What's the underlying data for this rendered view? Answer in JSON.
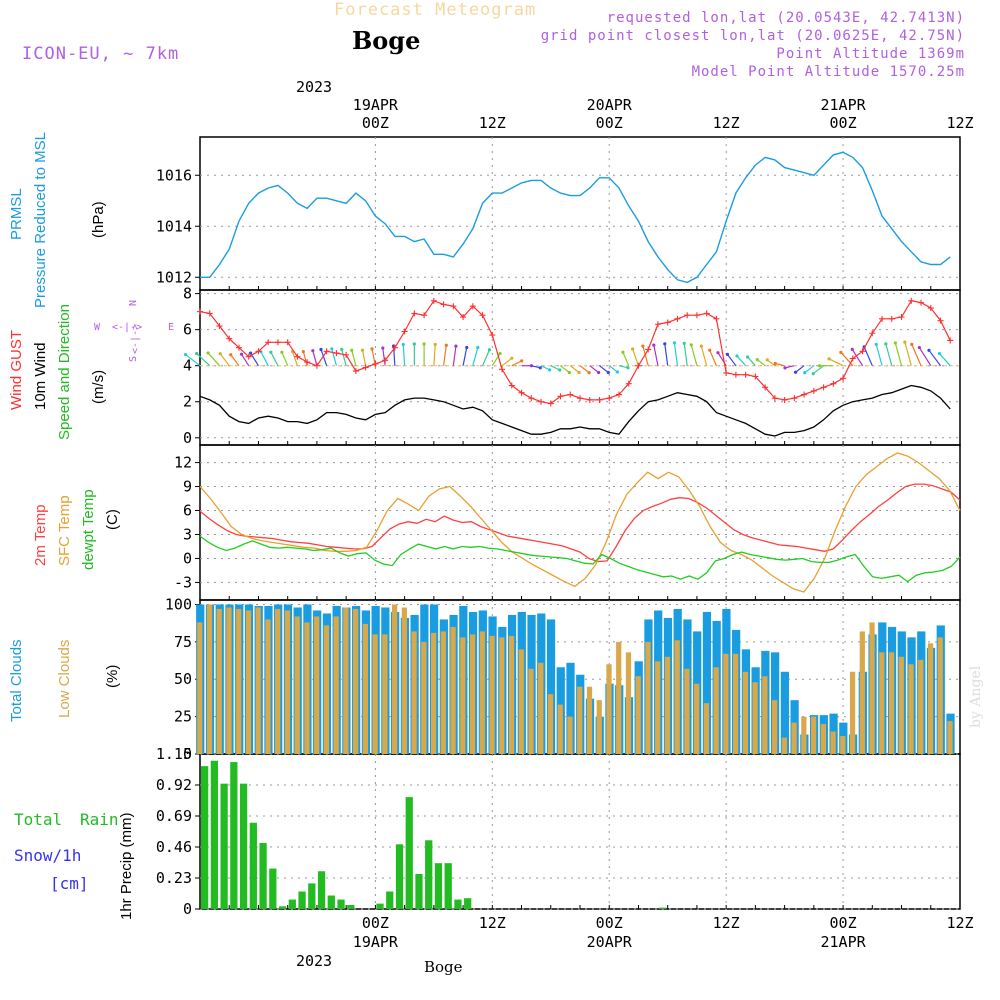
{
  "header": {
    "product": "Forecast Meteogram",
    "location": "Boge",
    "model": "ICON-EU, ~ 7km",
    "requested": "requested lon,lat (20.0543E, 42.7413N)",
    "gridpoint": "grid point closest lon,lat (20.0625E, 42.75N)",
    "point_alt": "Point Altitude 1369m",
    "model_alt": "Model Point Altitude 1570.25m"
  },
  "footer": {
    "location": "Boge",
    "watermark": "by Angel"
  },
  "time_axis": {
    "top": {
      "year": "2023",
      "labels": [
        {
          "date": "19APR",
          "hour": "00Z"
        },
        {
          "date": "",
          "hour": "12Z"
        },
        {
          "date": "20APR",
          "hour": "00Z"
        },
        {
          "date": "",
          "hour": "12Z"
        },
        {
          "date": "21APR",
          "hour": "00Z"
        },
        {
          "date": "",
          "hour": "12Z"
        }
      ]
    },
    "bottom": {
      "year": "2023",
      "labels": [
        {
          "hour": "00Z",
          "date": "19APR"
        },
        {
          "hour": "12Z",
          "date": ""
        },
        {
          "hour": "00Z",
          "date": "20APR"
        },
        {
          "hour": "12Z",
          "date": ""
        },
        {
          "hour": "00Z",
          "date": "21APR"
        },
        {
          "hour": "12Z",
          "date": ""
        }
      ]
    }
  },
  "panels": {
    "pressure": {
      "label1": "PRMSL",
      "label2": "Pressure Reduced to MSL",
      "unit": "(hPa)"
    },
    "wind": {
      "label1": "Wind GUST",
      "label2": "10m Wind",
      "label3": "Speed and Direction",
      "unit": "(m/s)",
      "compass": {
        "n": "N",
        "s": "S",
        "w": "W",
        "e": "E",
        "arrow": "<-|->"
      }
    },
    "temp": {
      "label1": "2m Temp",
      "label2": "SFC Temp",
      "label3": "dewpt Temp",
      "unit": "(C)"
    },
    "clouds": {
      "label1": "Total Clouds",
      "label2": "Low Clouds",
      "unit": "(%)"
    },
    "precip": {
      "label": "1hr Precip (mm)",
      "legend": {
        "total": "Total",
        "rain": "Rain",
        "snow": "Snow/1h",
        "snow_unit": "[cm]"
      }
    }
  },
  "colors": {
    "pressure": "#1a9de0",
    "gust": "#ff3030",
    "wind": "#000000",
    "temp2m": "#ff4040",
    "sfc": "#e8a030",
    "dew": "#22cc22",
    "total_clouds": "#1a9de0",
    "low_clouds": "#d9a84a",
    "precip": "#22bb22",
    "purple": "#b060e0"
  },
  "chart_data": [
    {
      "type": "line",
      "title": "PRMSL Pressure Reduced to MSL",
      "ylabel": "(hPa)",
      "x_hours_start": -18,
      "x_step_hours": 1,
      "ylim": [
        1011.5,
        1017.5
      ],
      "yticks": [
        1012,
        1014,
        1016
      ],
      "series": [
        {
          "name": "PRMSL",
          "values": [
            1012,
            1012,
            1012.5,
            1013.1,
            1014.2,
            1014.9,
            1015.3,
            1015.5,
            1015.6,
            1015.3,
            1014.9,
            1014.7,
            1015.1,
            1015.1,
            1015.0,
            1014.9,
            1015.3,
            1015.0,
            1014.4,
            1014.1,
            1013.6,
            1013.6,
            1013.4,
            1013.5,
            1012.9,
            1012.9,
            1012.8,
            1013.3,
            1013.9,
            1014.9,
            1015.3,
            1015.3,
            1015.5,
            1015.7,
            1015.8,
            1015.8,
            1015.5,
            1015.3,
            1015.2,
            1015.2,
            1015.5,
            1015.9,
            1015.9,
            1015.5,
            1014.8,
            1014.2,
            1013.4,
            1012.8,
            1012.3,
            1011.9,
            1011.8,
            1012.0,
            1012.5,
            1013.0,
            1014.2,
            1015.3,
            1015.9,
            1016.4,
            1016.7,
            1016.6,
            1016.3,
            1016.2,
            1016.1,
            1016.0,
            1016.4,
            1016.8,
            1016.9,
            1016.7,
            1016.3,
            1015.4,
            1014.4,
            1013.9,
            1013.4,
            1013.0,
            1012.6,
            1012.5,
            1012.5,
            1012.8
          ]
        }
      ]
    },
    {
      "type": "line",
      "title": "Wind GUST / 10m Wind Speed and Direction",
      "ylabel": "(m/s)",
      "x_hours_start": -18,
      "x_step_hours": 1,
      "ylim": [
        -0.4,
        8.2
      ],
      "yticks": [
        0,
        2,
        4,
        6,
        8
      ],
      "series": [
        {
          "name": "Wind GUST",
          "values": [
            7.0,
            6.9,
            6.2,
            5.5,
            5.0,
            4.5,
            4.8,
            5.3,
            5.3,
            5.3,
            4.5,
            4.2,
            4.0,
            4.8,
            4.7,
            4.6,
            3.7,
            3.9,
            4.1,
            4.3,
            5.0,
            5.9,
            6.9,
            6.8,
            7.6,
            7.4,
            7.3,
            6.7,
            7.3,
            6.8,
            5.7,
            3.8,
            2.9,
            2.5,
            2.2,
            2.0,
            1.9,
            2.3,
            2.4,
            2.2,
            2.1,
            2.1,
            2.2,
            2.4,
            3.0,
            4.0,
            4.9,
            6.3,
            6.4,
            6.6,
            6.8,
            6.8,
            6.9,
            6.6,
            3.6,
            3.5,
            3.5,
            3.4,
            2.8,
            2.2,
            2.1,
            2.2,
            2.4,
            2.6,
            2.8,
            3.0,
            3.3,
            4.4,
            4.8,
            5.8,
            6.6,
            6.6,
            6.7,
            7.6,
            7.5,
            7.2,
            6.5,
            5.4
          ]
        },
        {
          "name": "10m Wind",
          "values": [
            2.3,
            2.1,
            1.8,
            1.2,
            0.9,
            0.8,
            1.1,
            1.2,
            1.1,
            0.9,
            0.9,
            0.8,
            1.0,
            1.4,
            1.4,
            1.3,
            1.1,
            1.0,
            1.3,
            1.4,
            1.8,
            2.1,
            2.2,
            2.2,
            2.1,
            2.0,
            1.8,
            1.6,
            1.7,
            1.5,
            1.0,
            0.8,
            0.6,
            0.4,
            0.2,
            0.2,
            0.3,
            0.5,
            0.5,
            0.6,
            0.5,
            0.5,
            0.3,
            0.2,
            0.9,
            1.5,
            2.0,
            2.1,
            2.3,
            2.5,
            2.4,
            2.3,
            2.0,
            1.4,
            1.2,
            1.0,
            0.8,
            0.5,
            0.2,
            0.1,
            0.3,
            0.3,
            0.4,
            0.6,
            1.0,
            1.5,
            1.8,
            2.0,
            2.1,
            2.2,
            2.4,
            2.5,
            2.7,
            2.9,
            2.8,
            2.6,
            2.2,
            1.6
          ]
        }
      ],
      "direction_arrows_deg": [
        240,
        235,
        230,
        225,
        225,
        220,
        220,
        215,
        215,
        210,
        205,
        200,
        200,
        205,
        200,
        200,
        200,
        195,
        195,
        190,
        185,
        185,
        180,
        180,
        175,
        170,
        170,
        165,
        160,
        150,
        140,
        120,
        110,
        90,
        80,
        70,
        70,
        60,
        60,
        60,
        60,
        60,
        60,
        80,
        210,
        205,
        200,
        195,
        190,
        190,
        190,
        200,
        200,
        210,
        220,
        225,
        230,
        230,
        240,
        240,
        260,
        280,
        300,
        300,
        300,
        270,
        250,
        230,
        220,
        210,
        200,
        200,
        200,
        200,
        210,
        220,
        225,
        230
      ]
    },
    {
      "type": "line",
      "title": "2m Temp / SFC Temp / dewpt Temp",
      "ylabel": "(C)",
      "x_hours_start": -18,
      "x_step_hours": 1,
      "ylim": [
        -5.2,
        14.2
      ],
      "yticks": [
        -3,
        0,
        3,
        6,
        9,
        12
      ],
      "series": [
        {
          "name": "2m Temp",
          "values": [
            5.9,
            5.0,
            4.2,
            3.5,
            3.0,
            2.8,
            2.7,
            2.6,
            2.5,
            2.3,
            2.1,
            2.0,
            1.9,
            1.7,
            1.5,
            1.4,
            1.3,
            1.2,
            1.2,
            1.5,
            2.6,
            3.7,
            4.3,
            4.6,
            4.4,
            4.9,
            4.6,
            5.3,
            4.8,
            4.5,
            4.6,
            4.0,
            3.6,
            3.2,
            2.8,
            2.6,
            2.4,
            2.2,
            2.0,
            1.8,
            1.6,
            1.2,
            0.8,
            0.0,
            -0.4,
            -0.3,
            1.5,
            3.5,
            5.0,
            6.0,
            6.5,
            6.9,
            7.4,
            7.6,
            7.5,
            7.0,
            6.3,
            5.4,
            4.5,
            3.6,
            3.0,
            2.6,
            2.3,
            2.0,
            1.7,
            1.6,
            1.5,
            1.3,
            1.1,
            0.9,
            1.2,
            2.3,
            3.5,
            4.6,
            5.5,
            6.5,
            7.3,
            8.2,
            9.0,
            9.3,
            9.3,
            9.1,
            8.7,
            8.3,
            7.3
          ]
        },
        {
          "name": "SFC Temp",
          "values": [
            9.0,
            7.5,
            5.8,
            4.0,
            3.0,
            2.5,
            2.2,
            2.0,
            1.8,
            1.6,
            1.4,
            1.3,
            1.0,
            0.9,
            0.9,
            1.0,
            1.4,
            3.5,
            6.0,
            7.5,
            6.8,
            6.0,
            7.8,
            8.7,
            9.0,
            7.8,
            6.5,
            5.0,
            3.5,
            2.0,
            0.8,
            0.0,
            -0.8,
            -1.5,
            -2.2,
            -2.9,
            -3.5,
            -2.5,
            -0.8,
            2.0,
            5.5,
            8.0,
            9.5,
            10.8,
            10.0,
            10.8,
            10.2,
            8.5,
            6.5,
            4.0,
            2.0,
            1.0,
            0.5,
            -0.2,
            -1.2,
            -2.2,
            -3.0,
            -3.8,
            -4.2,
            -2.5,
            0.0,
            3.5,
            6.5,
            9.0,
            10.5,
            11.5,
            12.5,
            13.2,
            12.8,
            12.0,
            11.0,
            10.0,
            8.5,
            6.0
          ]
        },
        {
          "name": "dewpt Temp",
          "values": [
            2.8,
            2.0,
            1.4,
            1.0,
            1.3,
            1.8,
            2.2,
            1.8,
            1.4,
            1.3,
            1.4,
            1.3,
            1.2,
            1.0,
            1.1,
            1.3,
            0.7,
            0.3,
            0.6,
            0.7,
            -0.2,
            -0.7,
            -0.9,
            0.5,
            1.2,
            1.8,
            1.5,
            1.2,
            1.5,
            1.2,
            1.5,
            1.4,
            1.5,
            1.3,
            1.2,
            1.0,
            0.8,
            0.6,
            0.4,
            0.3,
            0.2,
            0.1,
            0.0,
            -0.3,
            -0.6,
            -0.7,
            0.5,
            0.0,
            -0.6,
            -1.0,
            -1.4,
            -1.7,
            -2.0,
            -2.3,
            -2.2,
            -2.6,
            -2.2,
            -2.6,
            -1.8,
            -0.3,
            0.0,
            0.5,
            0.8,
            0.5,
            0.3,
            0.1,
            -0.1,
            -0.2,
            -0.1,
            0.0,
            -0.4,
            -0.5,
            -0.5,
            -0.2,
            0.2,
            0.5,
            -1.0,
            -2.3,
            -2.5,
            -2.3,
            -2.1,
            -2.9,
            -2.1,
            -1.8,
            -1.7,
            -1.5,
            -1.0,
            0.2
          ]
        }
      ]
    },
    {
      "type": "bar",
      "title": "Total Clouds / Low Clouds",
      "ylabel": "(%)",
      "x_hours_start": -18,
      "x_step_hours": 1,
      "ylim": [
        0,
        103
      ],
      "yticks": [
        0,
        25,
        50,
        75,
        100
      ],
      "series": [
        {
          "name": "Total Clouds",
          "values": [
            100,
            100,
            100,
            100,
            100,
            100,
            99,
            99,
            100,
            100,
            98,
            100,
            96,
            94,
            99,
            98,
            99,
            96,
            99,
            98,
            95,
            91,
            93,
            100,
            100,
            90,
            93,
            99,
            95,
            96,
            92,
            85,
            93,
            95,
            93,
            94,
            90,
            58,
            61,
            53,
            37,
            25,
            47,
            46,
            38,
            62,
            90,
            96,
            91,
            97,
            90,
            82,
            95,
            89,
            97,
            83,
            70,
            58,
            69,
            68,
            55,
            36,
            13,
            26,
            26,
            27,
            21,
            13,
            55,
            80,
            88,
            85,
            82,
            78,
            82,
            71,
            86,
            27
          ]
        },
        {
          "name": "Low Clouds",
          "values": [
            88,
            100,
            97,
            98,
            97,
            96,
            98,
            90,
            97,
            96,
            92,
            88,
            92,
            86,
            92,
            98,
            97,
            87,
            80,
            80,
            100,
            98,
            82,
            75,
            81,
            82,
            85,
            78,
            80,
            82,
            79,
            78,
            79,
            70,
            57,
            61,
            40,
            33,
            25,
            45,
            45,
            36,
            60,
            75,
            68,
            52,
            75,
            62,
            65,
            76,
            57,
            47,
            34,
            58,
            67,
            67,
            55,
            48,
            52,
            36,
            11,
            21,
            25,
            25,
            20,
            15,
            12,
            55,
            82,
            88,
            68,
            68,
            65,
            60,
            63,
            74,
            78,
            22
          ]
        }
      ]
    },
    {
      "type": "bar",
      "title": "1hr Precip (mm)",
      "ylabel": "1hr Precip (mm)",
      "x_hours_start": -18,
      "x_step_hours": 1,
      "ylim": [
        0,
        1.15
      ],
      "yticks": [
        0,
        0.23,
        0.46,
        0.69,
        0.92,
        1.15
      ],
      "series": [
        {
          "name": "Total Rain",
          "values": [
            1.06,
            1.1,
            0.93,
            1.09,
            0.93,
            0.64,
            0.49,
            0.3,
            0.02,
            0.07,
            0.13,
            0.19,
            0.28,
            0.1,
            0.07,
            0.03,
            0,
            0,
            0.04,
            0.13,
            0.48,
            0.83,
            0.26,
            0.51,
            0.34,
            0.34,
            0.07,
            0.08,
            0,
            0,
            0,
            0,
            0,
            0,
            0,
            0,
            0,
            0,
            0,
            0,
            0,
            0,
            0,
            0,
            0,
            0,
            0,
            0.01,
            0,
            0,
            0,
            0,
            0,
            0,
            0,
            0,
            0,
            0,
            0,
            0,
            0,
            0,
            0,
            0,
            0,
            0,
            0,
            0,
            0,
            0,
            0,
            0,
            0,
            0,
            0,
            0,
            0,
            0
          ]
        }
      ]
    }
  ]
}
